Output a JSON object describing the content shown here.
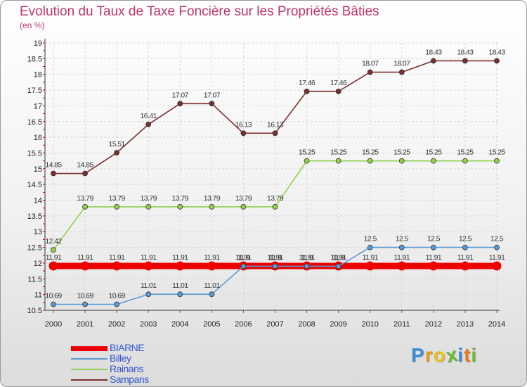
{
  "title": "Evolution du Taux de Taxe Foncière sur les Propriétés Bâties",
  "unit_label": "(en %)",
  "logo": {
    "letters": [
      "P",
      "r",
      "o",
      "x",
      "i",
      "t",
      "i"
    ],
    "colors": [
      "#3a8fd8",
      "#e89a1a",
      "#e8c21a",
      "#6bb832",
      "#3a8fd8",
      "#e87a1a",
      "#6bb832"
    ]
  },
  "chart_data": {
    "type": "line",
    "title": "Evolution du Taux de Taxe Foncière sur les Propriétés Bâties",
    "xlabel": "",
    "ylabel": "(en %)",
    "x": [
      "2000",
      "2001",
      "2002",
      "2003",
      "2004",
      "2005",
      "2006",
      "2007",
      "2008",
      "2009",
      "2010",
      "2011",
      "2012",
      "2013",
      "2014"
    ],
    "y_ticks": [
      "10.5",
      "11",
      "11.5",
      "12",
      "12.5",
      "13",
      "13.5",
      "14",
      "14.5",
      "15",
      "15.5",
      "16",
      "16.5",
      "17",
      "17.5",
      "18",
      "18.5",
      "19"
    ],
    "ylim": [
      10.5,
      19
    ],
    "grid": true,
    "legend_position": "bottom-left",
    "series": [
      {
        "name": "BIARNE",
        "color": "#ee0000",
        "values": [
          11.91,
          11.91,
          11.91,
          11.91,
          11.91,
          11.91,
          11.91,
          11.91,
          11.91,
          11.91,
          11.91,
          11.91,
          11.91,
          11.91,
          11.91
        ],
        "labels": [
          "11.91",
          "11.91",
          "11.91",
          "11.91",
          "11.91",
          "11.91",
          "11.91",
          "11.91",
          "11.91",
          "11.91",
          "11.91",
          "11.91",
          "11.91",
          "11.91",
          "11.91"
        ]
      },
      {
        "name": "Billey",
        "color": "#5b9bd5",
        "values": [
          10.69,
          10.69,
          10.69,
          11.01,
          11.01,
          11.01,
          11.9,
          11.9,
          11.9,
          11.9,
          12.5,
          12.5,
          12.5,
          12.5,
          12.5
        ],
        "labels": [
          "10.69",
          "10.69",
          "10.69",
          "11.01",
          "11.01",
          "11.01",
          "11.9",
          "11.9",
          "11.9",
          "11.9",
          "12.5",
          "12.5",
          "12.5",
          "12.5",
          "12.5"
        ]
      },
      {
        "name": "Rainans",
        "color": "#92d050",
        "values": [
          12.42,
          13.79,
          13.79,
          13.79,
          13.79,
          13.79,
          13.79,
          13.79,
          15.25,
          15.25,
          15.25,
          15.25,
          15.25,
          15.25,
          15.25
        ],
        "labels": [
          "12.42",
          "13.79",
          "13.79",
          "13.79",
          "13.79",
          "13.79",
          "13.79",
          "13.79",
          "15.25",
          "15.25",
          "15.25",
          "15.25",
          "15.25",
          "15.25",
          "15.25"
        ]
      },
      {
        "name": "Sampans",
        "color": "#7a2e2e",
        "values": [
          14.85,
          14.85,
          15.51,
          16.41,
          17.07,
          17.07,
          16.13,
          16.13,
          17.46,
          17.46,
          18.07,
          18.07,
          18.43,
          18.43,
          18.43
        ],
        "labels": [
          "14.85",
          "14.85",
          "15.51",
          "16.41",
          "17.07",
          "17.07",
          "16.13",
          "16.13",
          "17.46",
          "17.46",
          "18.07",
          "18.07",
          "18.43",
          "18.43",
          "18.43"
        ]
      }
    ]
  }
}
